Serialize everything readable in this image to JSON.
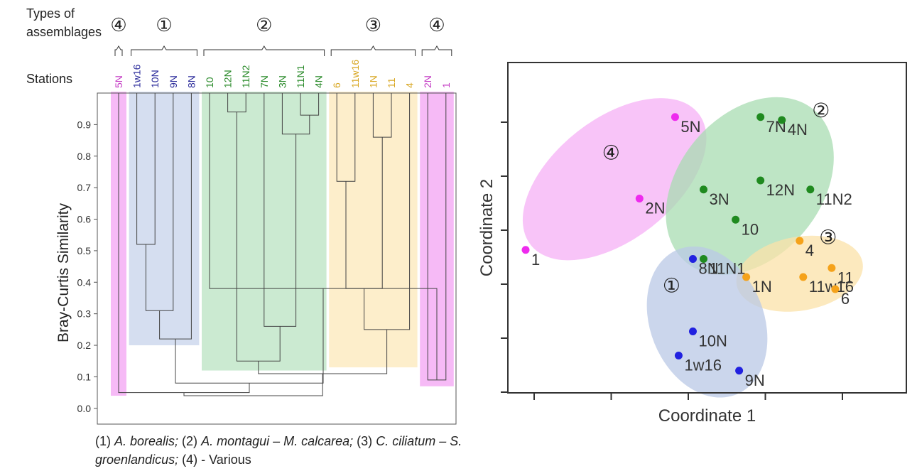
{
  "chart_data": [
    {
      "type": "dendrogram",
      "header_label": "Types of\nassemblages",
      "stations_label": "Stations",
      "ylabel": "Bray-Curtis Similarity",
      "ylim": [
        -0.05,
        1.0
      ],
      "yticks": [
        "0.0",
        "0.1",
        "0.2",
        "0.3",
        "0.4",
        "0.5",
        "0.6",
        "0.7",
        "0.8",
        "0.9"
      ],
      "ytick_values": [
        0.0,
        0.1,
        0.2,
        0.3,
        0.4,
        0.5,
        0.6,
        0.7,
        0.8,
        0.9
      ],
      "stations": [
        {
          "label": "5N",
          "group": "4"
        },
        {
          "label": "1w16",
          "group": "1"
        },
        {
          "label": "10N",
          "group": "1"
        },
        {
          "label": "9N",
          "group": "1"
        },
        {
          "label": "8N",
          "group": "1"
        },
        {
          "label": "10",
          "group": "2"
        },
        {
          "label": "12N",
          "group": "2"
        },
        {
          "label": "11N2",
          "group": "2"
        },
        {
          "label": "7N",
          "group": "2"
        },
        {
          "label": "3N",
          "group": "2"
        },
        {
          "label": "11N1",
          "group": "2"
        },
        {
          "label": "4N",
          "group": "2"
        },
        {
          "label": "6",
          "group": "3"
        },
        {
          "label": "11w16",
          "group": "3"
        },
        {
          "label": "1N",
          "group": "3"
        },
        {
          "label": "11",
          "group": "3"
        },
        {
          "label": "4",
          "group": "3"
        },
        {
          "label": "2N",
          "group": "4"
        },
        {
          "label": "1",
          "group": "4"
        }
      ],
      "merges": [
        {
          "left": "L1",
          "right": "L2",
          "h": 0.52
        },
        {
          "left": "N0",
          "right": "L3",
          "h": 0.31
        },
        {
          "left": "N1",
          "right": "L4",
          "h": 0.22
        },
        {
          "left": "L10",
          "right": "L11",
          "h": 0.93
        },
        {
          "left": "L9",
          "right": "N3",
          "h": 0.87
        },
        {
          "left": "L8",
          "right": "N4",
          "h": 0.26
        },
        {
          "left": "L12",
          "right": "L13",
          "h": 0.72
        },
        {
          "left": "L14",
          "right": "L15",
          "h": 0.86
        },
        {
          "left": "N6",
          "right": "N7",
          "h": 0.38
        },
        {
          "left": "N8",
          "right": "L16",
          "h": 0.25
        },
        {
          "left": "L17",
          "right": "L18",
          "h": 0.09
        },
        {
          "left": "L6",
          "right": "L7",
          "h": 0.94
        },
        {
          "left": "L5",
          "right": "N10",
          "h": 0.38
        },
        {
          "left": "N11",
          "right": "N5",
          "h": 0.15
        },
        {
          "left": "N2",
          "right": "N12",
          "h": 0.08
        },
        {
          "left": "N13",
          "right": "N9",
          "h": 0.11
        },
        {
          "left": "L0",
          "right": "N14",
          "h": 0.05
        },
        {
          "left": "N15",
          "right": "N16",
          "h": 0.04
        }
      ],
      "groups": [
        {
          "id": "4",
          "label": "④",
          "color": "#f08cf0",
          "stations": [
            "5N"
          ],
          "lower": 0.04
        },
        {
          "id": "1",
          "label": "①",
          "color": "#b9c8e6",
          "stations": [
            "1w16",
            "10N",
            "9N",
            "8N"
          ],
          "lower": 0.2
        },
        {
          "id": "2",
          "label": "②",
          "color": "#a8dcb2",
          "stations": [
            "10",
            "12N",
            "11N2",
            "7N",
            "3N",
            "11N1",
            "4N"
          ],
          "lower": 0.12
        },
        {
          "id": "3",
          "label": "③",
          "color": "#fbe2a8",
          "stations": [
            "6",
            "11w16",
            "1N",
            "11",
            "4"
          ],
          "lower": 0.13
        },
        {
          "id": "4b",
          "label": "④",
          "color": "#f08cf0",
          "stations": [
            "2N",
            "1"
          ],
          "lower": 0.07
        }
      ],
      "label_colors": {
        "1": "#2b2b9b",
        "2": "#2a8a2a",
        "3": "#d8a722",
        "4": "#c43bc4"
      },
      "legend_note_html": "(1) <i>A. borealis;</i> (2) <i>A. montagui – M. calcarea;</i> (3) <i>C. ciliatum – S. groenlandicus;</i> (4) - Various"
    },
    {
      "type": "scatter",
      "xlabel": "Coordinate 1",
      "ylabel": "Coordinate 2",
      "xlim": [
        0,
        10
      ],
      "ylim": [
        0,
        10
      ],
      "groups": [
        {
          "label": "①",
          "color": "#2121e0",
          "ellipse": "#b9c8e6"
        },
        {
          "label": "②",
          "color": "#1f8a1f",
          "ellipse": "#a8dcb2"
        },
        {
          "label": "③",
          "color": "#f5a21a",
          "ellipse": "#fbe2a8"
        },
        {
          "label": "④",
          "color": "#ee2bee",
          "ellipse": "#f6b0f6"
        }
      ],
      "points": [
        {
          "label": "5N",
          "x": 4.3,
          "y": 8.9,
          "group": 3
        },
        {
          "label": "2N",
          "x": 3.3,
          "y": 6.2,
          "group": 3
        },
        {
          "label": "1",
          "x": 0.1,
          "y": 4.5,
          "group": 3
        },
        {
          "label": "7N",
          "x": 6.7,
          "y": 8.9,
          "group": 1
        },
        {
          "label": "4N",
          "x": 7.3,
          "y": 8.8,
          "group": 1
        },
        {
          "label": "12N",
          "x": 6.7,
          "y": 6.8,
          "group": 1
        },
        {
          "label": "11N2",
          "x": 8.1,
          "y": 6.5,
          "group": 1
        },
        {
          "label": "3N",
          "x": 5.1,
          "y": 6.5,
          "group": 1
        },
        {
          "label": "10",
          "x": 6.0,
          "y": 5.5,
          "group": 1
        },
        {
          "label": "11N1",
          "x": 5.1,
          "y": 4.2,
          "group": 1
        },
        {
          "label": "8N",
          "x": 4.8,
          "y": 4.2,
          "group": 0
        },
        {
          "label": "10N",
          "x": 4.8,
          "y": 1.8,
          "group": 0
        },
        {
          "label": "1w16",
          "x": 4.4,
          "y": 1.0,
          "group": 0
        },
        {
          "label": "9N",
          "x": 6.1,
          "y": 0.5,
          "group": 0
        },
        {
          "label": "4",
          "x": 7.8,
          "y": 4.8,
          "group": 2
        },
        {
          "label": "11w16",
          "x": 7.9,
          "y": 3.6,
          "group": 2
        },
        {
          "label": "1N",
          "x": 6.3,
          "y": 3.6,
          "group": 2
        },
        {
          "label": "11",
          "x": 8.7,
          "y": 3.9,
          "group": 2
        },
        {
          "label": "6",
          "x": 8.8,
          "y": 3.2,
          "group": 2
        }
      ],
      "ellipse_labels": [
        {
          "label": "④",
          "x": 2.5,
          "y": 7.5
        },
        {
          "label": "②",
          "x": 8.4,
          "y": 8.9
        },
        {
          "label": "③",
          "x": 8.6,
          "y": 4.7
        },
        {
          "label": "①",
          "x": 4.2,
          "y": 3.1
        }
      ]
    }
  ]
}
